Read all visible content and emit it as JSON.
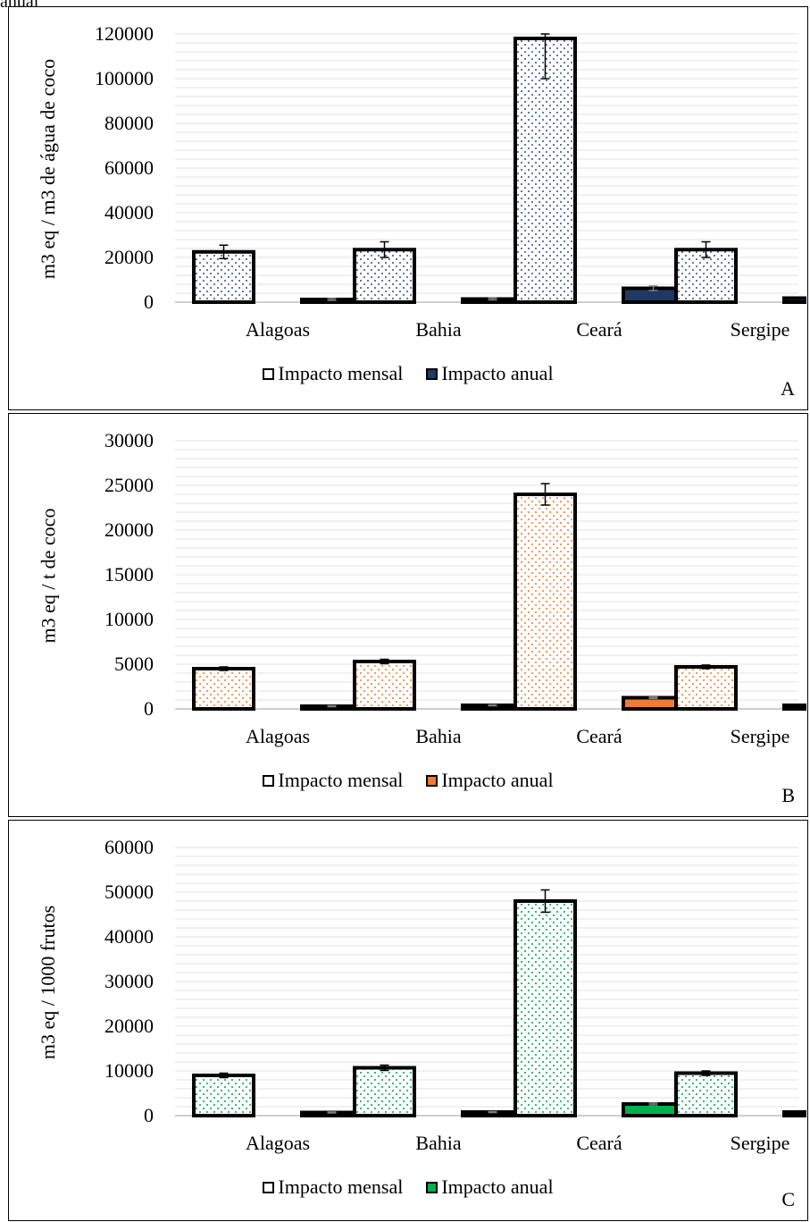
{
  "caption_fragment": "anual",
  "panels": [
    {
      "letter": "A",
      "ylabel": "m3 eq / m3 de água de coco",
      "legend": [
        "Impacto mensal",
        "Impacto anual"
      ],
      "accent": "#1f3864",
      "dot": "#2f4f8f"
    },
    {
      "letter": "B",
      "ylabel": "m3 eq / t de coco",
      "legend": [
        "Impacto mensal",
        "Impacto anual"
      ],
      "accent": "#ed7d31",
      "dot": "#ed7d31"
    },
    {
      "letter": "C",
      "ylabel": "m3 eq / 1000 frutos",
      "legend": [
        "Impacto mensal",
        "Impacto anual"
      ],
      "accent": "#00b050",
      "dot": "#00a050"
    }
  ],
  "chart_data": [
    {
      "type": "bar",
      "categories": [
        "Alagoas",
        "Bahia",
        "Ceará",
        "Sergipe"
      ],
      "series": [
        {
          "name": "Impacto mensal",
          "values": [
            22500,
            23500,
            118000,
            23500
          ],
          "error": [
            3000,
            3500,
            18000,
            3500
          ],
          "fill": "dotted",
          "color": "#ffffff"
        },
        {
          "name": "Impacto anual",
          "values": [
            1200,
            1400,
            6200,
            1800
          ],
          "error": [
            400,
            400,
            1000,
            500
          ],
          "fill": "solid",
          "color": "#1f3864"
        }
      ],
      "ylabel": "m3 eq / m3 de água de coco",
      "ylim": [
        0,
        120000
      ],
      "yticks": [
        0,
        20000,
        40000,
        60000,
        80000,
        100000,
        120000
      ],
      "grid": true,
      "legend_position": "bottom"
    },
    {
      "type": "bar",
      "categories": [
        "Alagoas",
        "Bahia",
        "Ceará",
        "Sergipe"
      ],
      "series": [
        {
          "name": "Impacto mensal",
          "values": [
            4500,
            5300,
            24000,
            4700
          ],
          "error": [
            200,
            250,
            1200,
            200
          ],
          "fill": "dotted",
          "color": "#ffffff"
        },
        {
          "name": "Impacto anual",
          "values": [
            300,
            400,
            1250,
            400
          ],
          "error": [
            50,
            50,
            80,
            50
          ],
          "fill": "solid",
          "color": "#ed7d31"
        }
      ],
      "ylabel": "m3 eq / t de coco",
      "ylim": [
        0,
        30000
      ],
      "yticks": [
        0,
        5000,
        10000,
        15000,
        20000,
        25000,
        30000
      ],
      "grid": true,
      "legend_position": "bottom"
    },
    {
      "type": "bar",
      "categories": [
        "Alagoas",
        "Bahia",
        "Ceará",
        "Sergipe"
      ],
      "series": [
        {
          "name": "Impacto mensal",
          "values": [
            9000,
            10700,
            48000,
            9500
          ],
          "error": [
            500,
            600,
            2500,
            500
          ],
          "fill": "dotted",
          "color": "#ffffff"
        },
        {
          "name": "Impacto anual",
          "values": [
            700,
            800,
            2600,
            800
          ],
          "error": [
            100,
            100,
            200,
            100
          ],
          "fill": "solid",
          "color": "#00b050"
        }
      ],
      "ylabel": "m3 eq / 1000 frutos",
      "ylim": [
        0,
        60000
      ],
      "yticks": [
        0,
        10000,
        20000,
        30000,
        40000,
        50000,
        60000
      ],
      "grid": true,
      "legend_position": "bottom"
    }
  ]
}
